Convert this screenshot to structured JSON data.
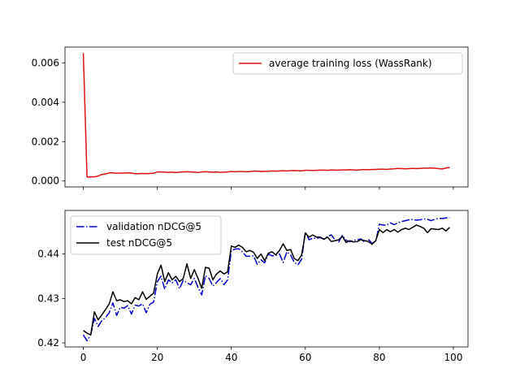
{
  "chart_data": [
    {
      "type": "line",
      "title": "",
      "xlabel": "",
      "ylabel": "",
      "xlim": [
        -4.95,
        103.95
      ],
      "ylim": [
        -0.0003,
        0.0068
      ],
      "xticks": [
        0,
        20,
        40,
        60,
        80,
        100
      ],
      "xtick_labels_visible": false,
      "yticks": [
        0.0,
        0.002,
        0.004,
        0.006
      ],
      "ytick_labels": [
        "0.000",
        "0.002",
        "0.004",
        "0.006"
      ],
      "grid": false,
      "legend_position": "upper right",
      "series": [
        {
          "name": "average training loss (WassRank)",
          "color": "#dd1111",
          "style": "solid",
          "x": [
            0,
            1,
            2,
            3,
            4,
            5,
            6,
            7,
            8,
            9,
            10,
            11,
            12,
            13,
            14,
            15,
            16,
            17,
            18,
            19,
            20,
            21,
            22,
            23,
            24,
            25,
            26,
            27,
            28,
            29,
            30,
            31,
            32,
            33,
            34,
            35,
            36,
            37,
            38,
            39,
            40,
            41,
            42,
            43,
            44,
            45,
            46,
            47,
            48,
            49,
            50,
            51,
            52,
            53,
            54,
            55,
            56,
            57,
            58,
            59,
            60,
            61,
            62,
            63,
            64,
            65,
            66,
            67,
            68,
            69,
            70,
            71,
            72,
            73,
            74,
            75,
            76,
            77,
            78,
            79,
            80,
            81,
            82,
            83,
            84,
            85,
            86,
            87,
            88,
            89,
            90,
            91,
            92,
            93,
            94,
            95,
            96,
            97,
            98,
            99
          ],
          "y": [
            0.0065,
            0.0002,
            0.0002,
            0.00021,
            0.00025,
            0.00033,
            0.00036,
            0.00041,
            0.00041,
            0.00039,
            0.0004,
            0.0004,
            0.00041,
            0.0004,
            0.00037,
            0.00037,
            0.00038,
            0.00037,
            0.00038,
            0.00039,
            0.00046,
            0.00046,
            0.00045,
            0.00044,
            0.00045,
            0.00043,
            0.00045,
            0.00046,
            0.00047,
            0.00046,
            0.00045,
            0.00043,
            0.00046,
            0.00047,
            0.00046,
            0.00045,
            0.00046,
            0.00044,
            0.00045,
            0.00046,
            0.00048,
            0.00047,
            0.00048,
            0.00048,
            0.00047,
            0.00048,
            0.0005,
            0.0005,
            0.00048,
            0.00049,
            0.00049,
            0.00051,
            0.0005,
            0.00051,
            0.00052,
            0.00051,
            0.00052,
            0.00053,
            0.00052,
            0.00051,
            0.00054,
            0.00054,
            0.00053,
            0.00054,
            0.00055,
            0.00055,
            0.00054,
            0.00056,
            0.00055,
            0.00055,
            0.00056,
            0.00056,
            0.00057,
            0.00056,
            0.00055,
            0.00057,
            0.00058,
            0.00057,
            0.00058,
            0.00059,
            0.0006,
            0.0006,
            0.00059,
            0.00061,
            0.00062,
            0.00064,
            0.00063,
            0.00062,
            0.00063,
            0.00064,
            0.00063,
            0.00064,
            0.00065,
            0.00065,
            0.00066,
            0.00065,
            0.00063,
            0.00061,
            0.00066,
            0.00068
          ]
        }
      ]
    },
    {
      "type": "line",
      "title": "",
      "xlabel": "",
      "ylabel": "",
      "xlim": [
        -4.95,
        103.95
      ],
      "ylim": [
        0.4191,
        0.4498
      ],
      "xticks": [
        0,
        20,
        40,
        60,
        80,
        100
      ],
      "xtick_labels": [
        "0",
        "20",
        "40",
        "60",
        "80",
        "100"
      ],
      "yticks": [
        0.42,
        0.43,
        0.44
      ],
      "ytick_labels": [
        "0.42",
        "0.43",
        "0.44"
      ],
      "grid": false,
      "legend_position": "upper left",
      "series": [
        {
          "name": "validation nDCG@5",
          "color": "#0000cc",
          "style": "dashdot",
          "x": [
            0,
            1,
            2,
            3,
            4,
            5,
            6,
            7,
            8,
            9,
            10,
            11,
            12,
            13,
            14,
            15,
            16,
            17,
            18,
            19,
            20,
            21,
            22,
            23,
            24,
            25,
            26,
            27,
            28,
            29,
            30,
            31,
            32,
            33,
            34,
            35,
            36,
            37,
            38,
            39,
            40,
            41,
            42,
            43,
            44,
            45,
            46,
            47,
            48,
            49,
            50,
            51,
            52,
            53,
            54,
            55,
            56,
            57,
            58,
            59,
            60,
            61,
            62,
            63,
            64,
            65,
            66,
            67,
            68,
            69,
            70,
            71,
            72,
            73,
            74,
            75,
            76,
            77,
            78,
            79,
            80,
            81,
            82,
            83,
            84,
            85,
            86,
            87,
            88,
            89,
            90,
            91,
            92,
            93,
            94,
            95,
            96,
            97,
            98,
            99
          ],
          "y": [
            0.4218,
            0.4205,
            0.4218,
            0.4255,
            0.4237,
            0.425,
            0.4257,
            0.4268,
            0.429,
            0.4262,
            0.428,
            0.4278,
            0.4284,
            0.4265,
            0.4285,
            0.4283,
            0.4288,
            0.4268,
            0.4287,
            0.4292,
            0.4338,
            0.435,
            0.4321,
            0.4342,
            0.4335,
            0.4342,
            0.4322,
            0.4341,
            0.4335,
            0.4331,
            0.4345,
            0.4325,
            0.4308,
            0.4351,
            0.4345,
            0.4328,
            0.4336,
            0.4345,
            0.4331,
            0.4342,
            0.4408,
            0.4411,
            0.4412,
            0.4405,
            0.4395,
            0.4395,
            0.4396,
            0.4377,
            0.4387,
            0.438,
            0.44,
            0.4396,
            0.4397,
            0.44,
            0.4381,
            0.4405,
            0.4398,
            0.4381,
            0.4376,
            0.4388,
            0.445,
            0.4432,
            0.4436,
            0.4435,
            0.4437,
            0.4434,
            0.4439,
            0.4443,
            0.4432,
            0.4427,
            0.4442,
            0.4431,
            0.4428,
            0.443,
            0.4432,
            0.4434,
            0.4427,
            0.4433,
            0.4424,
            0.4427,
            0.4467,
            0.4465,
            0.4465,
            0.447,
            0.4466,
            0.447,
            0.4473,
            0.4475,
            0.4477,
            0.4478,
            0.4476,
            0.4477,
            0.4479,
            0.4478,
            0.4475,
            0.4478,
            0.448,
            0.448,
            0.4481,
            0.4482
          ]
        },
        {
          "name": "test nDCG@5",
          "color": "#000000",
          "style": "solid",
          "x": [
            0,
            1,
            2,
            3,
            4,
            5,
            6,
            7,
            8,
            9,
            10,
            11,
            12,
            13,
            14,
            15,
            16,
            17,
            18,
            19,
            20,
            21,
            22,
            23,
            24,
            25,
            26,
            27,
            28,
            29,
            30,
            31,
            32,
            33,
            34,
            35,
            36,
            37,
            38,
            39,
            40,
            41,
            42,
            43,
            44,
            45,
            46,
            47,
            48,
            49,
            50,
            51,
            52,
            53,
            54,
            55,
            56,
            57,
            58,
            59,
            60,
            61,
            62,
            63,
            64,
            65,
            66,
            67,
            68,
            69,
            70,
            71,
            72,
            73,
            74,
            75,
            76,
            77,
            78,
            79,
            80,
            81,
            82,
            83,
            84,
            85,
            86,
            87,
            88,
            89,
            90,
            91,
            92,
            93,
            94,
            95,
            96,
            97,
            98,
            99
          ],
          "y": [
            0.4228,
            0.4222,
            0.4218,
            0.427,
            0.4252,
            0.4263,
            0.4275,
            0.4288,
            0.4315,
            0.4295,
            0.4297,
            0.4293,
            0.4295,
            0.4288,
            0.4302,
            0.4297,
            0.4315,
            0.4298,
            0.4305,
            0.4312,
            0.4355,
            0.4375,
            0.4338,
            0.4358,
            0.4342,
            0.435,
            0.4338,
            0.4345,
            0.4378,
            0.4345,
            0.4365,
            0.4345,
            0.4323,
            0.437,
            0.4368,
            0.4342,
            0.4355,
            0.4362,
            0.4355,
            0.436,
            0.4418,
            0.4415,
            0.442,
            0.4415,
            0.4405,
            0.4408,
            0.4404,
            0.439,
            0.44,
            0.4385,
            0.4402,
            0.4405,
            0.4398,
            0.4408,
            0.4423,
            0.4408,
            0.441,
            0.439,
            0.4385,
            0.4398,
            0.4447,
            0.4438,
            0.4443,
            0.4438,
            0.4438,
            0.4433,
            0.4438,
            0.4428,
            0.443,
            0.4432,
            0.444,
            0.4426,
            0.443,
            0.4427,
            0.4428,
            0.4432,
            0.443,
            0.4428,
            0.4422,
            0.443,
            0.4455,
            0.4448,
            0.4455,
            0.445,
            0.4455,
            0.4449,
            0.4455,
            0.4458,
            0.4455,
            0.446,
            0.4465,
            0.4462,
            0.4458,
            0.4448,
            0.4457,
            0.4456,
            0.4455,
            0.4458,
            0.4452,
            0.446
          ]
        }
      ]
    }
  ]
}
